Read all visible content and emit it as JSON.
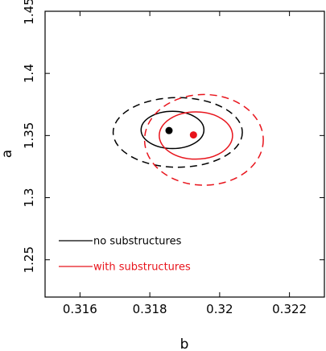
{
  "chart_data": {
    "type": "scatter",
    "xlabel": "b",
    "ylabel": "a",
    "xlim": [
      0.315,
      0.323
    ],
    "ylim": [
      1.22,
      1.45
    ],
    "x_ticks": [
      {
        "value": 0.316,
        "label": "0.316"
      },
      {
        "value": 0.318,
        "label": "0.318"
      },
      {
        "value": 0.32,
        "label": "0.32"
      },
      {
        "value": 0.322,
        "label": "0.322"
      }
    ],
    "y_ticks": [
      {
        "value": 1.25,
        "label": "1.25"
      },
      {
        "value": 1.3,
        "label": "1.3"
      },
      {
        "value": 1.35,
        "label": "1.35"
      },
      {
        "value": 1.4,
        "label": "1.4"
      },
      {
        "value": 1.45,
        "label": "1.45"
      }
    ],
    "series": [
      {
        "name": "no substructures",
        "color": "#000000",
        "best_fit": {
          "x": 0.31855,
          "y": 1.354
        },
        "contours": [
          {
            "style": "solid",
            "center": {
              "x": 0.31865,
              "y": 1.3545
            },
            "semi_x": 0.0009,
            "semi_y": 0.015
          },
          {
            "style": "dashed",
            "center": {
              "x": 0.3188,
              "y": 1.3525
            },
            "semi_x": 0.00185,
            "semi_y": 0.028
          }
        ]
      },
      {
        "name": "with substructures",
        "color": "#e8141c",
        "best_fit": {
          "x": 0.31925,
          "y": 1.3505
        },
        "contours": [
          {
            "style": "solid",
            "center": {
              "x": 0.31932,
              "y": 1.35
            },
            "semi_x": 0.00105,
            "semi_y": 0.019
          },
          {
            "style": "dashed",
            "center": {
              "x": 0.31955,
              "y": 1.3465
            },
            "semi_x": 0.0017,
            "semi_y": 0.0365
          }
        ]
      }
    ],
    "legend": {
      "placement": "bottom-left"
    }
  }
}
